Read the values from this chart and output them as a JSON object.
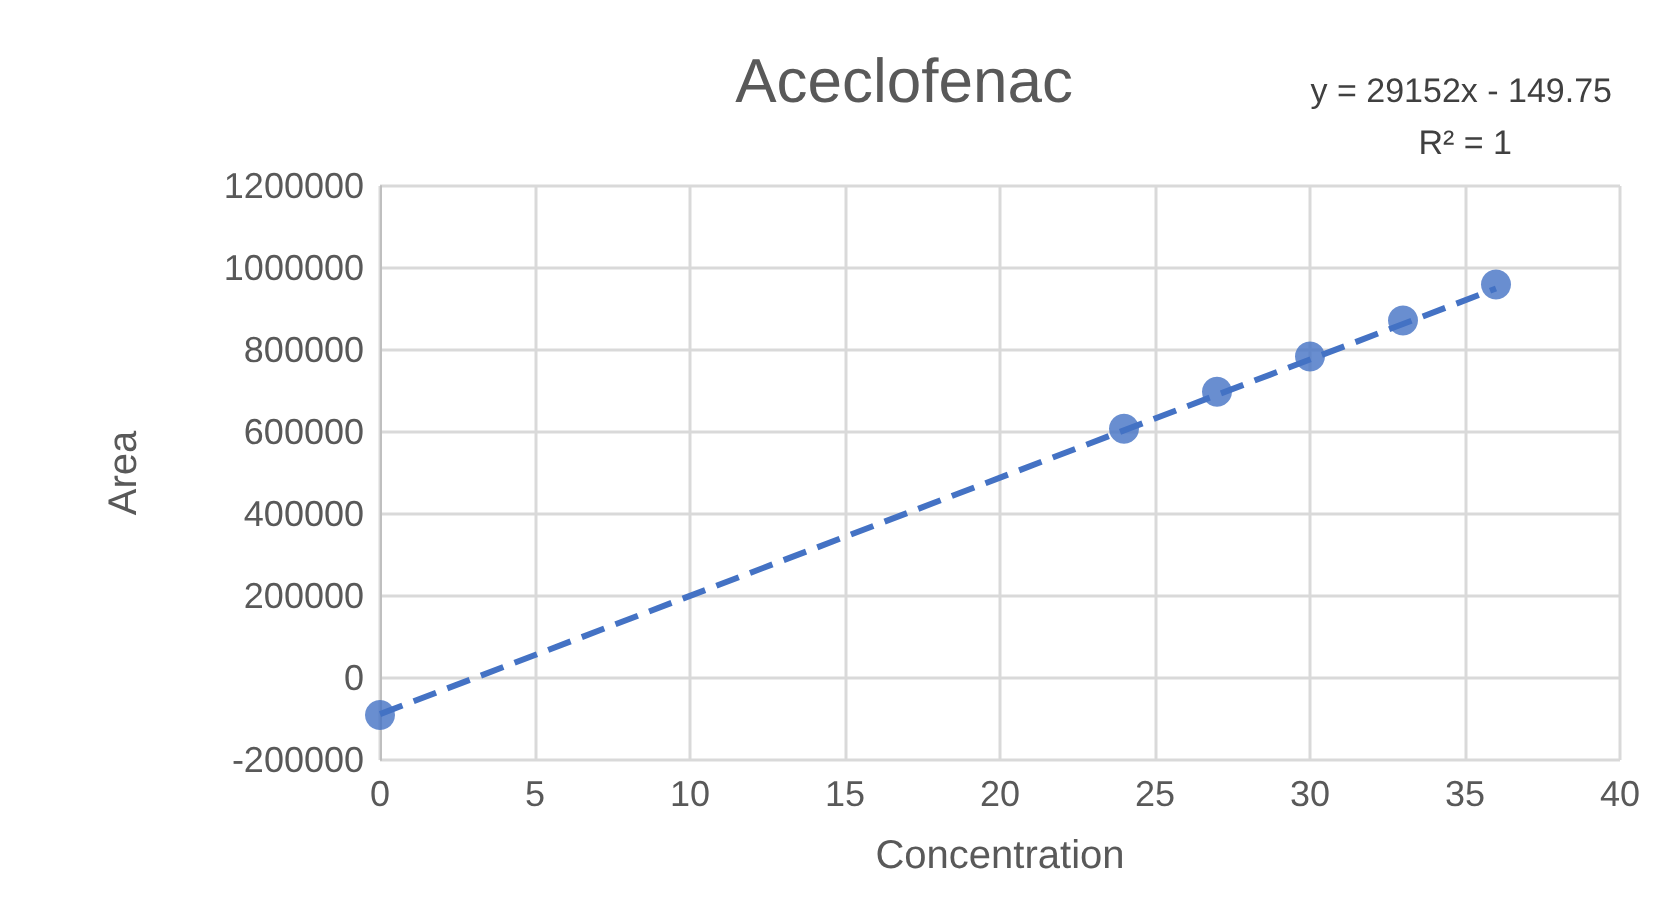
{
  "chart_data": {
    "type": "scatter",
    "title": "Aceclofenac",
    "xlabel": "Concentration",
    "ylabel": "Area",
    "annotations": [
      "y = 29152x - 149.75",
      "R² = 1"
    ],
    "series": [
      {
        "color": "#4472c4",
        "marker": "circle",
        "x": [
          0,
          24,
          27,
          30,
          33,
          36
        ],
        "values": [
          -90000,
          608000,
          698000,
          784000,
          872000,
          960000
        ]
      },
      {
        "type": "line",
        "color": "#4472c4",
        "line_style": "dashed",
        "marker": "none",
        "x": [
          0,
          36
        ],
        "values": [
          -88000,
          950000
        ]
      }
    ],
    "xlim": [
      0,
      40
    ],
    "xticks": [
      0,
      5,
      10,
      15,
      20,
      25,
      30,
      35,
      40
    ],
    "ylim": [
      -200000,
      1200000
    ],
    "yticks": [
      -200000,
      0,
      200000,
      400000,
      600000,
      800000,
      1000000,
      1200000
    ],
    "grid": true
  }
}
